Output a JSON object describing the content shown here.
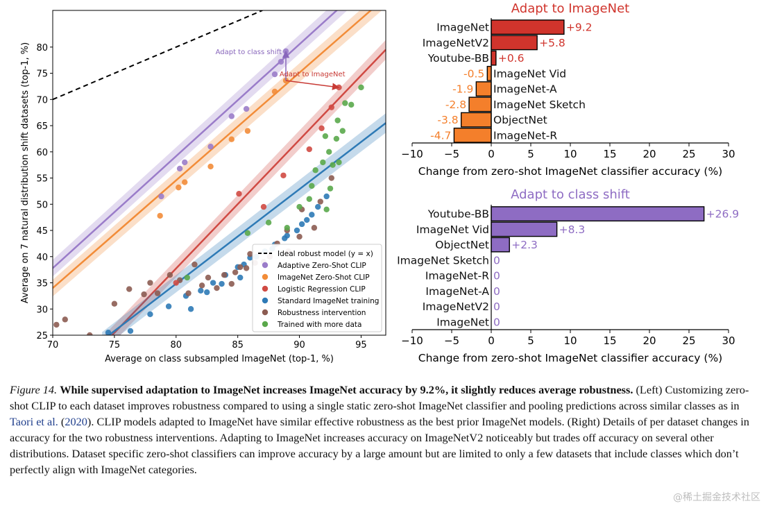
{
  "chart_data": [
    {
      "type": "scatter",
      "xlabel": "Average on class subsampled ImageNet (top-1, %)",
      "ylabel": "Average on 7 natural distribution shift datasets (top-1, %)",
      "xlim": [
        70,
        97
      ],
      "ylim": [
        25,
        87
      ],
      "xticks": [
        70,
        75,
        80,
        85,
        90,
        95
      ],
      "yticks": [
        25,
        30,
        35,
        40,
        45,
        50,
        55,
        60,
        65,
        70,
        75,
        80
      ],
      "grid": false,
      "legend_position": "bottom-right",
      "ideal_line": {
        "name": "Ideal robust model (y = x)",
        "color": "#000000"
      },
      "series": [
        {
          "name": "Adaptive Zero-Shot CLIP",
          "color": "#9a7cc9",
          "fit": {
            "x": [
              70,
              97
            ],
            "y": [
              37.8,
              95.5
            ]
          },
          "points": [
            [
              78.8,
              51.5
            ],
            [
              80.3,
              56.8
            ],
            [
              80.7,
              58.0
            ],
            [
              82.8,
              61.0
            ],
            [
              84.5,
              66.8
            ],
            [
              85.7,
              68.2
            ],
            [
              88.0,
              74.8
            ],
            [
              88.5,
              77.2
            ],
            [
              88.9,
              79.2
            ]
          ]
        },
        {
          "name": "ImageNet Zero-Shot CLIP",
          "color": "#f28c38",
          "fit": {
            "x": [
              70,
              97
            ],
            "y": [
              34.0,
              89.5
            ]
          },
          "points": [
            [
              78.7,
              47.8
            ],
            [
              80.2,
              53.2
            ],
            [
              80.7,
              54.2
            ],
            [
              82.8,
              57.2
            ],
            [
              84.5,
              62.4
            ],
            [
              85.8,
              64.0
            ],
            [
              88.0,
              71.5
            ],
            [
              88.9,
              73.6
            ]
          ]
        },
        {
          "name": "Logistic Regression CLIP",
          "color": "#d04a43",
          "fit": {
            "x": [
              74,
              97
            ],
            "y": [
              23.0,
              79.5
            ]
          },
          "points": [
            [
              88.7,
              55.5
            ],
            [
              90.8,
              60.5
            ],
            [
              91.8,
              64.5
            ],
            [
              92.6,
              68.5
            ],
            [
              93.2,
              72.3
            ],
            [
              80.0,
              35.0
            ],
            [
              85.1,
              52.0
            ],
            [
              87.1,
              49.5
            ]
          ]
        },
        {
          "name": "Standard ImageNet training",
          "color": "#2e7ab6",
          "fit": {
            "x": [
              74,
              97
            ],
            "y": [
              24.0,
              65.5
            ]
          },
          "points": [
            [
              74.5,
              25.5
            ],
            [
              76.3,
              25.8
            ],
            [
              77.9,
              29.0
            ],
            [
              79.4,
              30.5
            ],
            [
              80.8,
              32.5
            ],
            [
              82.0,
              33.5
            ],
            [
              83.0,
              35.0
            ],
            [
              84.0,
              36.5
            ],
            [
              85.0,
              38.0
            ],
            [
              85.5,
              38.5
            ],
            [
              86.5,
              40.0
            ],
            [
              87.2,
              41.0
            ],
            [
              88.0,
              42.3
            ],
            [
              89.0,
              44.0
            ],
            [
              89.8,
              45.0
            ],
            [
              90.6,
              47.0
            ],
            [
              91.5,
              49.5
            ],
            [
              92.2,
              51.5
            ],
            [
              81.2,
              30.0
            ],
            [
              83.7,
              34.8
            ],
            [
              86.0,
              39.8
            ],
            [
              87.8,
              41.5
            ],
            [
              88.8,
              43.5
            ],
            [
              90.2,
              46.2
            ],
            [
              91.0,
              48.0
            ],
            [
              85.2,
              36.0
            ],
            [
              82.5,
              33.2
            ]
          ]
        },
        {
          "name": "Robustness intervention",
          "color": "#8c5c52",
          "fit": null,
          "points": [
            [
              70.3,
              27.0
            ],
            [
              71.0,
              28.0
            ],
            [
              73.0,
              25.0
            ],
            [
              75.0,
              31.0
            ],
            [
              76.2,
              33.8
            ],
            [
              77.4,
              32.8
            ],
            [
              77.9,
              35.0
            ],
            [
              78.5,
              33.0
            ],
            [
              79.5,
              36.5
            ],
            [
              80.3,
              35.5
            ],
            [
              81.0,
              33.0
            ],
            [
              81.5,
              38.5
            ],
            [
              82.1,
              34.5
            ],
            [
              82.6,
              36.0
            ],
            [
              83.3,
              34.0
            ],
            [
              83.9,
              36.5
            ],
            [
              84.5,
              34.8
            ],
            [
              85.2,
              38.0
            ],
            [
              85.7,
              37.8
            ],
            [
              86.4,
              38.8
            ],
            [
              87.1,
              39.0
            ],
            [
              88.2,
              42.5
            ],
            [
              89.1,
              41.0
            ],
            [
              90.0,
              43.8
            ],
            [
              91.2,
              45.5
            ],
            [
              91.7,
              50.5
            ],
            [
              92.6,
              55.0
            ],
            [
              90.2,
              49.0
            ],
            [
              89.0,
              45.0
            ],
            [
              86.0,
              40.5
            ],
            [
              84.8,
              37.0
            ],
            [
              87.6,
              40.0
            ]
          ]
        },
        {
          "name": "Trained with more data",
          "color": "#5aa84b",
          "fit": null,
          "points": [
            [
              80.9,
              36.0
            ],
            [
              85.8,
              44.5
            ],
            [
              87.5,
              46.5
            ],
            [
              89.0,
              45.5
            ],
            [
              90.0,
              49.5
            ],
            [
              90.8,
              51.0
            ],
            [
              91.3,
              56.5
            ],
            [
              91.9,
              58.0
            ],
            [
              92.4,
              60.0
            ],
            [
              93.0,
              62.5
            ],
            [
              93.5,
              64.0
            ],
            [
              94.2,
              69.0
            ],
            [
              95.0,
              72.3
            ],
            [
              92.1,
              63.0
            ],
            [
              93.1,
              66.0
            ],
            [
              93.7,
              69.3
            ],
            [
              92.5,
              53.0
            ],
            [
              91.0,
              53.5
            ],
            [
              92.2,
              49.0
            ],
            [
              93.2,
              58.0
            ],
            [
              92.7,
              57.5
            ]
          ]
        }
      ],
      "annotations": [
        {
          "text": "Adapt to class shift",
          "color": "#8866bb",
          "from": [
            88.9,
            73.6
          ],
          "to": [
            88.9,
            79.2
          ]
        },
        {
          "text": "Adapt to ImageNet",
          "color": "#c83a35",
          "from": [
            88.9,
            73.6
          ],
          "to": [
            93.2,
            72.3
          ]
        }
      ]
    },
    {
      "type": "bar",
      "orientation": "horizontal",
      "title": "Adapt to ImageNet",
      "title_color": "#d0342c",
      "xlabel": "Change from zero-shot ImageNet classifier accuracy (%)",
      "xlim": [
        -10,
        30
      ],
      "xticks": [
        -10,
        -5,
        0,
        5,
        10,
        15,
        20,
        25,
        30
      ],
      "categories": [
        "ImageNet",
        "ImageNetV2",
        "Youtube-BB",
        "ImageNet Vid",
        "ImageNet-A",
        "ImageNet Sketch",
        "ObjectNet",
        "ImageNet-R"
      ],
      "values": [
        9.2,
        5.8,
        0.6,
        -0.5,
        -1.9,
        -2.8,
        -3.8,
        -4.7
      ],
      "value_labels": [
        "+9.2",
        "+5.8",
        "+0.6",
        "-0.5",
        "-1.9",
        "-2.8",
        "-3.8",
        "-4.7"
      ],
      "positive_color": "#d0342c",
      "negative_color": "#f47f2b"
    },
    {
      "type": "bar",
      "orientation": "horizontal",
      "title": "Adapt to class shift",
      "title_color": "#8e6cc3",
      "xlabel": "Change from zero-shot ImageNet classifier accuracy (%)",
      "xlim": [
        -10,
        30
      ],
      "xticks": [
        -10,
        -5,
        0,
        5,
        10,
        15,
        20,
        25,
        30
      ],
      "categories": [
        "Youtube-BB",
        "ImageNet Vid",
        "ObjectNet",
        "ImageNet Sketch",
        "ImageNet-R",
        "ImageNet-A",
        "ImageNetV2",
        "ImageNet"
      ],
      "values": [
        26.9,
        8.3,
        2.3,
        0,
        0,
        0,
        0,
        0
      ],
      "value_labels": [
        "+26.9",
        "+8.3",
        "+2.3",
        "0",
        "0",
        "0",
        "0",
        "0"
      ],
      "positive_color": "#8e6cc3",
      "negative_color": "#8e6cc3"
    }
  ],
  "caption": {
    "figure_label": "Figure 14.",
    "bold_text": "While supervised adaptation to ImageNet increases ImageNet accuracy by 9.2%, it slightly reduces average robustness.",
    "text_before_ref": "(Left) Customizing zero-shot CLIP to each dataset improves robustness compared to using a single static zero-shot ImageNet classifier and pooling predictions across similar classes as in",
    "ref_author": "Taori et al.",
    "ref_year": "2020",
    "text_after_ref": ". CLIP models adapted to ImageNet have similar effective robustness as the best prior ImageNet models. (Right) Details of per dataset changes in accuracy for the two robustness interventions. Adapting to ImageNet increases accuracy on ImageNetV2 noticeably but trades off accuracy on several other distributions. Dataset specific zero-shot classifiers can improve accuracy by a large amount but are limited to only a few datasets that include classes which don’t perfectly align with ImageNet categories."
  },
  "watermark": "@稀土掘金技术社区"
}
